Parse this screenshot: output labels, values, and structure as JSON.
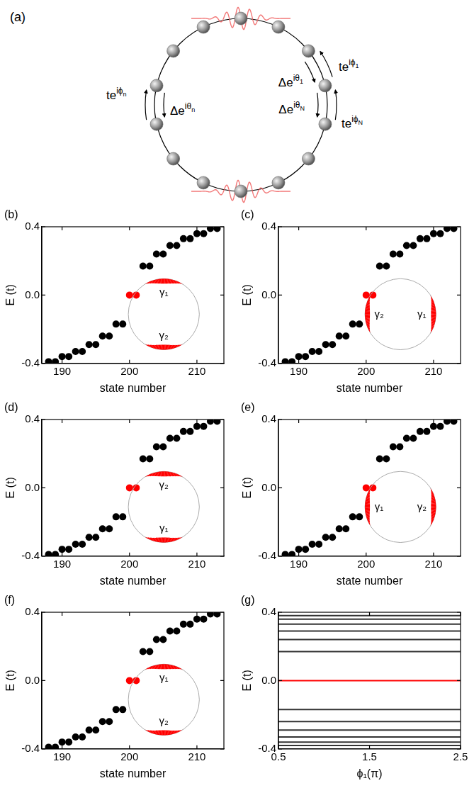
{
  "diagram": {
    "label": "(a)",
    "hoppings": [
      {
        "base": "te",
        "sup": "iϕ",
        "sub": "n"
      },
      {
        "base": "Δe",
        "sup": "iθ",
        "sub": "n"
      },
      {
        "base": "Δe",
        "sup": "iθ",
        "sub": "1"
      },
      {
        "base": "te",
        "sup": "iϕ",
        "sub": "1"
      },
      {
        "base": "Δe",
        "sup": "iθ",
        "sub": "N"
      },
      {
        "base": "te",
        "sup": "iϕ",
        "sub": "N"
      }
    ]
  },
  "chart_data": [
    {
      "label": "(b)",
      "type": "scatter",
      "x_label": "state number",
      "y_label": "E (t)",
      "x": [
        188,
        189,
        190,
        191,
        192,
        193,
        194,
        195,
        196,
        197,
        198,
        199,
        200,
        201,
        202,
        203,
        204,
        205,
        206,
        207,
        208,
        209,
        210,
        211,
        212,
        213
      ],
      "series": [
        {
          "color": "#000000",
          "marker": "circle",
          "values": [
            -0.39,
            -0.39,
            -0.36,
            -0.36,
            -0.33,
            -0.33,
            -0.29,
            -0.29,
            -0.24,
            -0.24,
            -0.17,
            -0.17,
            null,
            null,
            0.17,
            0.17,
            0.24,
            0.24,
            0.29,
            0.29,
            0.33,
            0.33,
            0.36,
            0.36,
            0.39,
            0.39
          ]
        },
        {
          "color": "#ff0000",
          "marker": "circle",
          "values": [
            null,
            null,
            null,
            null,
            null,
            null,
            null,
            null,
            null,
            null,
            null,
            null,
            0,
            0,
            null,
            null,
            null,
            null,
            null,
            null,
            null,
            null,
            null,
            null,
            null,
            null
          ]
        }
      ],
      "xlim": [
        187,
        214
      ],
      "xticks": [
        190,
        200,
        210
      ],
      "ylim": [
        -0.4,
        0.4
      ],
      "yticks": [
        -0.4,
        {
          "value": 0,
          "label": "0.0"
        },
        0.4
      ],
      "grid": false,
      "inset": [
        {
          "label": "γ₁",
          "side": "top"
        },
        {
          "label": "γ₂",
          "side": "bottom"
        }
      ]
    },
    {
      "label": "(c)",
      "type": "scatter",
      "x_label": "state number",
      "y_label": "E (t)",
      "x": [
        188,
        189,
        190,
        191,
        192,
        193,
        194,
        195,
        196,
        197,
        198,
        199,
        200,
        201,
        202,
        203,
        204,
        205,
        206,
        207,
        208,
        209,
        210,
        211,
        212,
        213
      ],
      "series": [
        {
          "color": "#000000",
          "marker": "circle",
          "values": [
            -0.39,
            -0.39,
            -0.36,
            -0.36,
            -0.33,
            -0.33,
            -0.29,
            -0.29,
            -0.24,
            -0.24,
            -0.17,
            -0.17,
            null,
            null,
            0.17,
            0.17,
            0.24,
            0.24,
            0.29,
            0.29,
            0.33,
            0.33,
            0.36,
            0.36,
            0.39,
            0.39
          ]
        },
        {
          "color": "#ff0000",
          "marker": "circle",
          "values": [
            null,
            null,
            null,
            null,
            null,
            null,
            null,
            null,
            null,
            null,
            null,
            null,
            0,
            0,
            null,
            null,
            null,
            null,
            null,
            null,
            null,
            null,
            null,
            null,
            null,
            null
          ]
        }
      ],
      "xlim": [
        187,
        214
      ],
      "xticks": [
        190,
        200,
        210
      ],
      "ylim": [
        -0.4,
        0.4
      ],
      "yticks": [
        -0.4,
        {
          "value": 0,
          "label": "0.0"
        },
        0.4
      ],
      "grid": false,
      "inset": [
        {
          "label": "γ₁",
          "side": "right"
        },
        {
          "label": "γ₂",
          "side": "left"
        }
      ]
    },
    {
      "label": "(d)",
      "type": "scatter",
      "x_label": "state number",
      "y_label": "E (t)",
      "x": [
        188,
        189,
        190,
        191,
        192,
        193,
        194,
        195,
        196,
        197,
        198,
        199,
        200,
        201,
        202,
        203,
        204,
        205,
        206,
        207,
        208,
        209,
        210,
        211,
        212,
        213
      ],
      "series": [
        {
          "color": "#000000",
          "marker": "circle",
          "values": [
            -0.39,
            -0.39,
            -0.36,
            -0.36,
            -0.33,
            -0.33,
            -0.29,
            -0.29,
            -0.24,
            -0.24,
            -0.17,
            -0.17,
            null,
            null,
            0.17,
            0.17,
            0.24,
            0.24,
            0.29,
            0.29,
            0.33,
            0.33,
            0.36,
            0.36,
            0.39,
            0.39
          ]
        },
        {
          "color": "#ff0000",
          "marker": "circle",
          "values": [
            null,
            null,
            null,
            null,
            null,
            null,
            null,
            null,
            null,
            null,
            null,
            null,
            0,
            0,
            null,
            null,
            null,
            null,
            null,
            null,
            null,
            null,
            null,
            null,
            null,
            null
          ]
        }
      ],
      "xlim": [
        187,
        214
      ],
      "xticks": [
        190,
        200,
        210
      ],
      "ylim": [
        -0.4,
        0.4
      ],
      "yticks": [
        -0.4,
        {
          "value": 0,
          "label": "0.0"
        },
        0.4
      ],
      "grid": false,
      "inset": [
        {
          "label": "γ₂",
          "side": "top"
        },
        {
          "label": "γ₁",
          "side": "bottom"
        }
      ]
    },
    {
      "label": "(e)",
      "type": "scatter",
      "x_label": "state number",
      "y_label": "E (t)",
      "x": [
        188,
        189,
        190,
        191,
        192,
        193,
        194,
        195,
        196,
        197,
        198,
        199,
        200,
        201,
        202,
        203,
        204,
        205,
        206,
        207,
        208,
        209,
        210,
        211,
        212,
        213
      ],
      "series": [
        {
          "color": "#000000",
          "marker": "circle",
          "values": [
            -0.39,
            -0.39,
            -0.36,
            -0.36,
            -0.33,
            -0.33,
            -0.29,
            -0.29,
            -0.24,
            -0.24,
            -0.17,
            -0.17,
            null,
            null,
            0.17,
            0.17,
            0.24,
            0.24,
            0.29,
            0.29,
            0.33,
            0.33,
            0.36,
            0.36,
            0.39,
            0.39
          ]
        },
        {
          "color": "#ff0000",
          "marker": "circle",
          "values": [
            null,
            null,
            null,
            null,
            null,
            null,
            null,
            null,
            null,
            null,
            null,
            null,
            0,
            0,
            null,
            null,
            null,
            null,
            null,
            null,
            null,
            null,
            null,
            null,
            null,
            null
          ]
        }
      ],
      "xlim": [
        187,
        214
      ],
      "xticks": [
        190,
        200,
        210
      ],
      "ylim": [
        -0.4,
        0.4
      ],
      "yticks": [
        -0.4,
        {
          "value": 0,
          "label": "0.0"
        },
        0.4
      ],
      "grid": false,
      "inset": [
        {
          "label": "γ₁",
          "side": "left"
        },
        {
          "label": "γ₂",
          "side": "right"
        }
      ]
    },
    {
      "label": "(f)",
      "type": "scatter",
      "x_label": "state number",
      "y_label": "E (t)",
      "x": [
        188,
        189,
        190,
        191,
        192,
        193,
        194,
        195,
        196,
        197,
        198,
        199,
        200,
        201,
        202,
        203,
        204,
        205,
        206,
        207,
        208,
        209,
        210,
        211,
        212,
        213
      ],
      "series": [
        {
          "color": "#000000",
          "marker": "circle",
          "values": [
            -0.39,
            -0.39,
            -0.36,
            -0.36,
            -0.33,
            -0.33,
            -0.29,
            -0.29,
            -0.24,
            -0.24,
            -0.17,
            -0.17,
            null,
            null,
            0.17,
            0.17,
            0.24,
            0.24,
            0.29,
            0.29,
            0.33,
            0.33,
            0.36,
            0.36,
            0.39,
            0.39
          ]
        },
        {
          "color": "#ff0000",
          "marker": "circle",
          "values": [
            null,
            null,
            null,
            null,
            null,
            null,
            null,
            null,
            null,
            null,
            null,
            null,
            0,
            0,
            null,
            null,
            null,
            null,
            null,
            null,
            null,
            null,
            null,
            null,
            null,
            null
          ]
        }
      ],
      "xlim": [
        187,
        214
      ],
      "xticks": [
        190,
        200,
        210
      ],
      "ylim": [
        -0.4,
        0.4
      ],
      "yticks": [
        -0.4,
        {
          "value": 0,
          "label": "0.0"
        },
        0.4
      ],
      "grid": false,
      "inset": [
        {
          "label": "γ₁",
          "side": "top"
        },
        {
          "label": "γ₂",
          "side": "bottom"
        }
      ]
    },
    {
      "label": "(g)",
      "type": "line",
      "x_label": "ϕ₁(π)",
      "y_label": "E (t)",
      "x": [
        0.5,
        2.5
      ],
      "series": [
        {
          "color": "#ff0000",
          "line_style": "solid",
          "values": [
            0,
            0
          ]
        },
        {
          "color": "#333333",
          "line_style": "solid",
          "values": [
            0.17,
            0.17
          ]
        },
        {
          "color": "#333333",
          "line_style": "solid",
          "values": [
            0.24,
            0.24
          ]
        },
        {
          "color": "#333333",
          "line_style": "solid",
          "values": [
            0.29,
            0.29
          ]
        },
        {
          "color": "#333333",
          "line_style": "solid",
          "values": [
            0.33,
            0.33
          ]
        },
        {
          "color": "#333333",
          "line_style": "solid",
          "values": [
            0.36,
            0.36
          ]
        },
        {
          "color": "#333333",
          "line_style": "solid",
          "values": [
            0.38,
            0.38
          ]
        },
        {
          "color": "#333333",
          "line_style": "solid",
          "values": [
            -0.17,
            -0.17
          ]
        },
        {
          "color": "#333333",
          "line_style": "solid",
          "values": [
            -0.24,
            -0.24
          ]
        },
        {
          "color": "#333333",
          "line_style": "solid",
          "values": [
            -0.29,
            -0.29
          ]
        },
        {
          "color": "#333333",
          "line_style": "solid",
          "values": [
            -0.33,
            -0.33
          ]
        },
        {
          "color": "#333333",
          "line_style": "solid",
          "values": [
            -0.36,
            -0.36
          ]
        },
        {
          "color": "#333333",
          "line_style": "solid",
          "values": [
            -0.38,
            -0.38
          ]
        }
      ],
      "xlim": [
        0.5,
        2.5
      ],
      "xticks": [
        0.5,
        1.5,
        2.5
      ],
      "ylim": [
        -0.4,
        0.4
      ],
      "yticks": [
        -0.4,
        {
          "value": 0,
          "label": "0.0"
        },
        0.4
      ],
      "grid": false
    }
  ]
}
